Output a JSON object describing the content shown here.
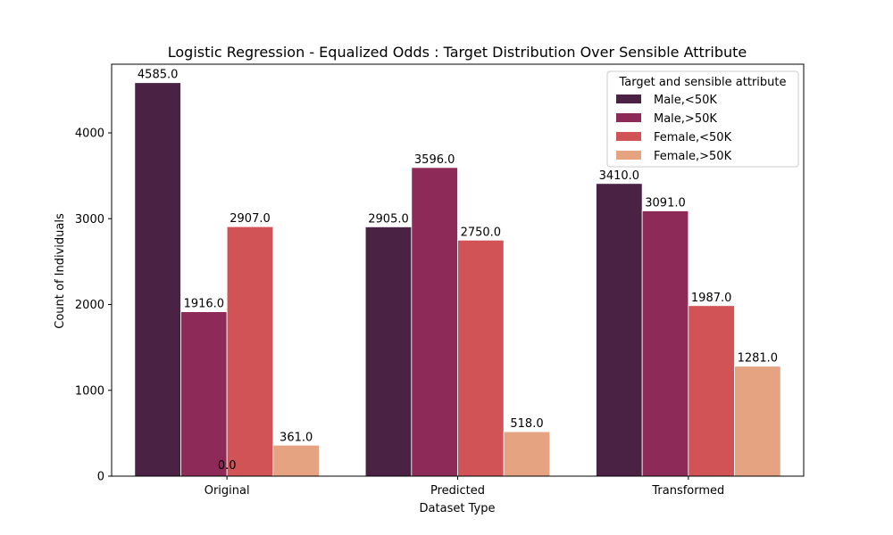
{
  "chart_data": {
    "type": "bar",
    "title": "Logistic Regression - Equalized Odds : Target Distribution Over Sensible Attribute",
    "xlabel": "Dataset Type",
    "ylabel": "Count of Individuals",
    "categories": [
      "Original",
      "Predicted",
      "Transformed"
    ],
    "ylim": [
      0,
      4800
    ],
    "yticks": [
      0,
      1000,
      2000,
      3000,
      4000
    ],
    "grid": false,
    "legend": {
      "title": "Target and sensible attribute",
      "placement": "top-right"
    },
    "series": [
      {
        "name": "Male,<50K",
        "color": "#4a2344",
        "values": [
          4585.0,
          2905.0,
          3410.0
        ],
        "labels": [
          "4585.0",
          "2905.0",
          "3410.0"
        ]
      },
      {
        "name": "Male,>50K",
        "color": "#8e2a58",
        "values": [
          1916.0,
          3596.0,
          3091.0
        ],
        "labels": [
          "1916.0",
          "3596.0",
          "3091.0"
        ]
      },
      {
        "name": "Female,<50K",
        "color": "#d25356",
        "values": [
          2907.0,
          2750.0,
          1987.0
        ],
        "labels": [
          "2907.0",
          "2750.0",
          "1987.0"
        ]
      },
      {
        "name": "Female,>50K",
        "color": "#e6a381",
        "values": [
          361.0,
          518.0,
          1281.0
        ],
        "labels": [
          "361.0",
          "518.0",
          "1281.0"
        ]
      }
    ],
    "annotations": [
      {
        "category": "Original",
        "text": "0.0"
      }
    ]
  }
}
